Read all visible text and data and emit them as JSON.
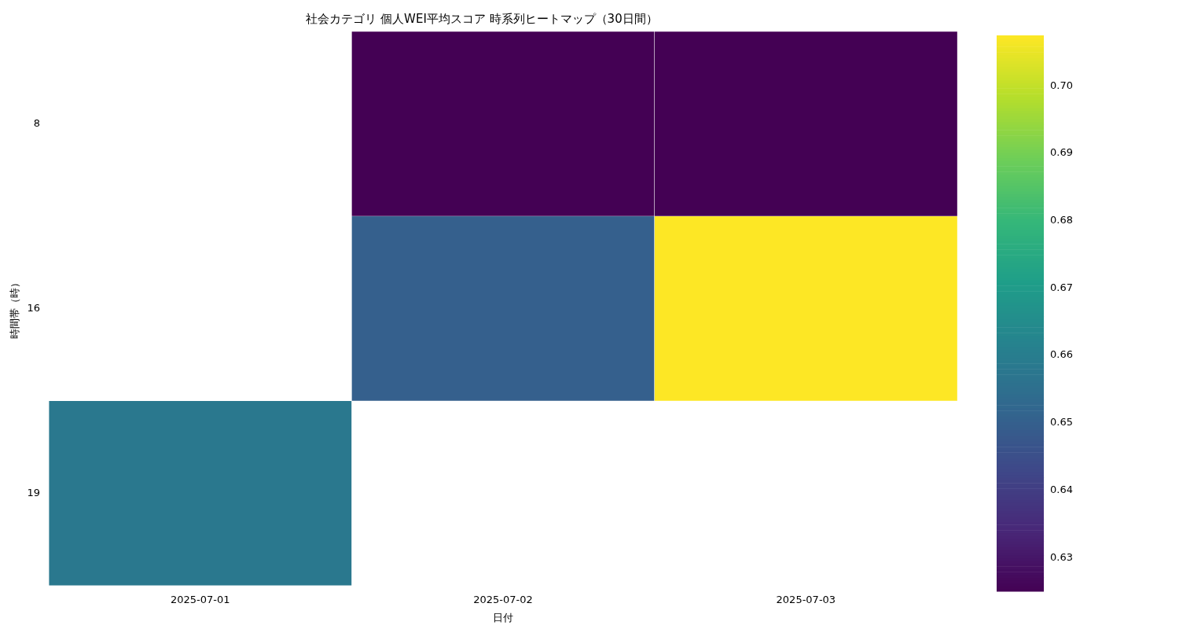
{
  "chart_data": {
    "type": "heatmap",
    "title": "社会カテゴリ 個人WEI平均スコア 時系列ヒートマップ（30日間）",
    "xlabel": "日付",
    "ylabel": "時間帯（時）",
    "categories": [
      "2025-07-01",
      "2025-07-02",
      "2025-07-03"
    ],
    "y_categories": [
      "8",
      "16",
      "19"
    ],
    "cells": [
      [
        null,
        0.625,
        0.625
      ],
      [
        null,
        0.65,
        0.7075
      ],
      [
        0.658,
        null,
        null
      ]
    ],
    "clim": [
      0.625,
      0.7075
    ],
    "cticks": [
      {
        "value": 0.63,
        "label": "0.63"
      },
      {
        "value": 0.64,
        "label": "0.64"
      },
      {
        "value": 0.65,
        "label": "0.65"
      },
      {
        "value": 0.66,
        "label": "0.66"
      },
      {
        "value": 0.67,
        "label": "0.67"
      },
      {
        "value": 0.68,
        "label": "0.68"
      },
      {
        "value": 0.69,
        "label": "0.69"
      },
      {
        "value": 0.7,
        "label": "0.70"
      }
    ]
  }
}
